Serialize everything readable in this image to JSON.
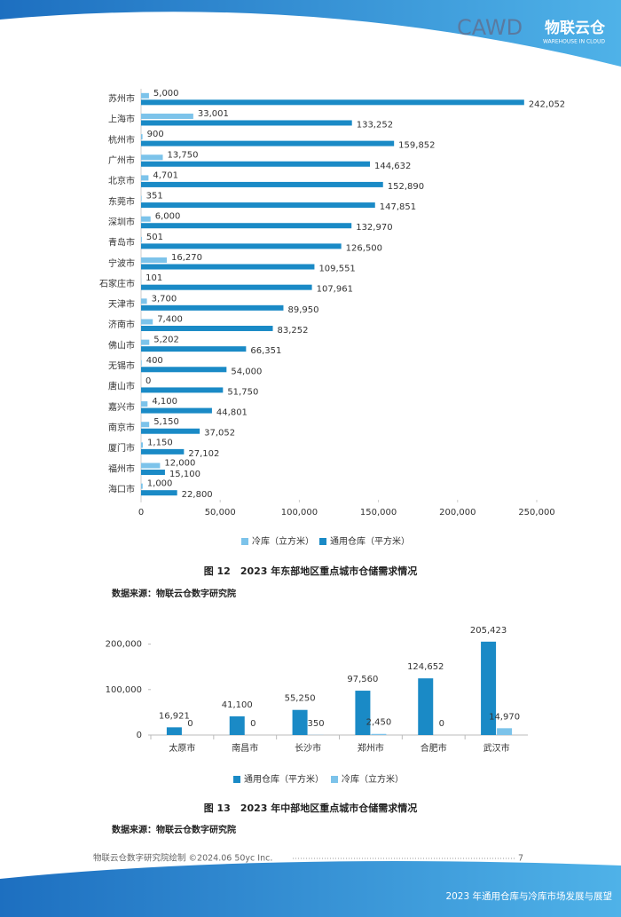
{
  "header": {
    "brand": "CAWD",
    "logo": "物联云仓",
    "logo_sub": "WAREHOUSE IN CLOUD"
  },
  "chart_data": [
    {
      "type": "hbar",
      "title": "图 12　2023 年东部地区重点城市仓储需求情况",
      "source": "数据来源：物联云仓数字研究院",
      "legend": "bottom",
      "grid": false,
      "categories": [
        "苏州市",
        "上海市",
        "杭州市",
        "广州市",
        "北京市",
        "东莞市",
        "深圳市",
        "青岛市",
        "宁波市",
        "石家庄市",
        "天津市",
        "济南市",
        "佛山市",
        "无锡市",
        "唐山市",
        "嘉兴市",
        "南京市",
        "厦门市",
        "福州市",
        "海口市"
      ],
      "series": [
        {
          "name": "冷库（立方米）",
          "color": "#7cc3ea",
          "values": [
            5000,
            33001,
            900,
            13750,
            4701,
            351,
            6000,
            501,
            16270,
            101,
            3700,
            7400,
            5202,
            400,
            0,
            4100,
            5150,
            1150,
            12000,
            1000
          ],
          "value_labels": [
            "5,000",
            "33,001",
            "900",
            "13,750",
            "4,701",
            "351",
            "6,000",
            "501",
            "16,270",
            "101",
            "3,700",
            "7,400",
            "5,202",
            "400",
            "0",
            "4,100",
            "5,150",
            "1,150",
            "12,000",
            "1,000"
          ]
        },
        {
          "name": "通用仓库（平方米）",
          "color": "#1a8ac6",
          "values": [
            242052,
            133252,
            159852,
            144632,
            152890,
            147851,
            132970,
            126500,
            109551,
            107961,
            89950,
            83252,
            66351,
            54000,
            51750,
            44801,
            37052,
            27102,
            15100,
            22800
          ],
          "value_labels": [
            "242,052",
            "133,252",
            "159,852",
            "144,632",
            "152,890",
            "147,851",
            "132,970",
            "126,500",
            "109,551",
            "107,961",
            "89,950",
            "83,252",
            "66,351",
            "54,000",
            "51,750",
            "44,801",
            "37,052",
            "27,102",
            "15,100",
            "22,800"
          ]
        }
      ],
      "xlim": [
        0,
        250000
      ],
      "xticks": [
        0,
        {
          "value": 50000,
          "label": "50,000"
        },
        {
          "value": 100000,
          "label": "100,000"
        },
        {
          "value": 150000,
          "label": "150,000"
        },
        {
          "value": 200000,
          "label": "200,000"
        },
        {
          "value": 250000,
          "label": "250,000"
        }
      ]
    },
    {
      "type": "bar",
      "title": "图 13　2023 年中部地区重点城市仓储需求情况",
      "source": "数据来源：物联云仓数字研究院",
      "legend": "bottom",
      "grid": false,
      "categories": [
        "太原市",
        "南昌市",
        "长沙市",
        "郑州市",
        "合肥市",
        "武汉市"
      ],
      "series": [
        {
          "name": "通用仓库（平方米）",
          "color": "#1a8ac6",
          "values": [
            16921,
            41100,
            55250,
            97560,
            124652,
            205423
          ],
          "value_labels": [
            "16,921",
            "41,100",
            "55,250",
            "97,560",
            "124,652",
            "205,423"
          ]
        },
        {
          "name": "冷库（立方米）",
          "color": "#7cc3ea",
          "values": [
            0,
            0,
            350,
            2450,
            0,
            14970
          ],
          "value_labels": [
            "0",
            "0",
            "350",
            "2,450",
            "0",
            "14,970"
          ]
        }
      ],
      "ylim": [
        0,
        250000
      ],
      "yticks": [
        0,
        {
          "value": 100000,
          "label": "100,000"
        },
        {
          "value": 200000,
          "label": "200,000"
        }
      ]
    }
  ],
  "footer": {
    "credit": "物联云仓数字研究院绘制 ©2024.06 50yc Inc.",
    "page": "7",
    "report": "2023 年通用仓库与冷库市场发展与展望"
  }
}
